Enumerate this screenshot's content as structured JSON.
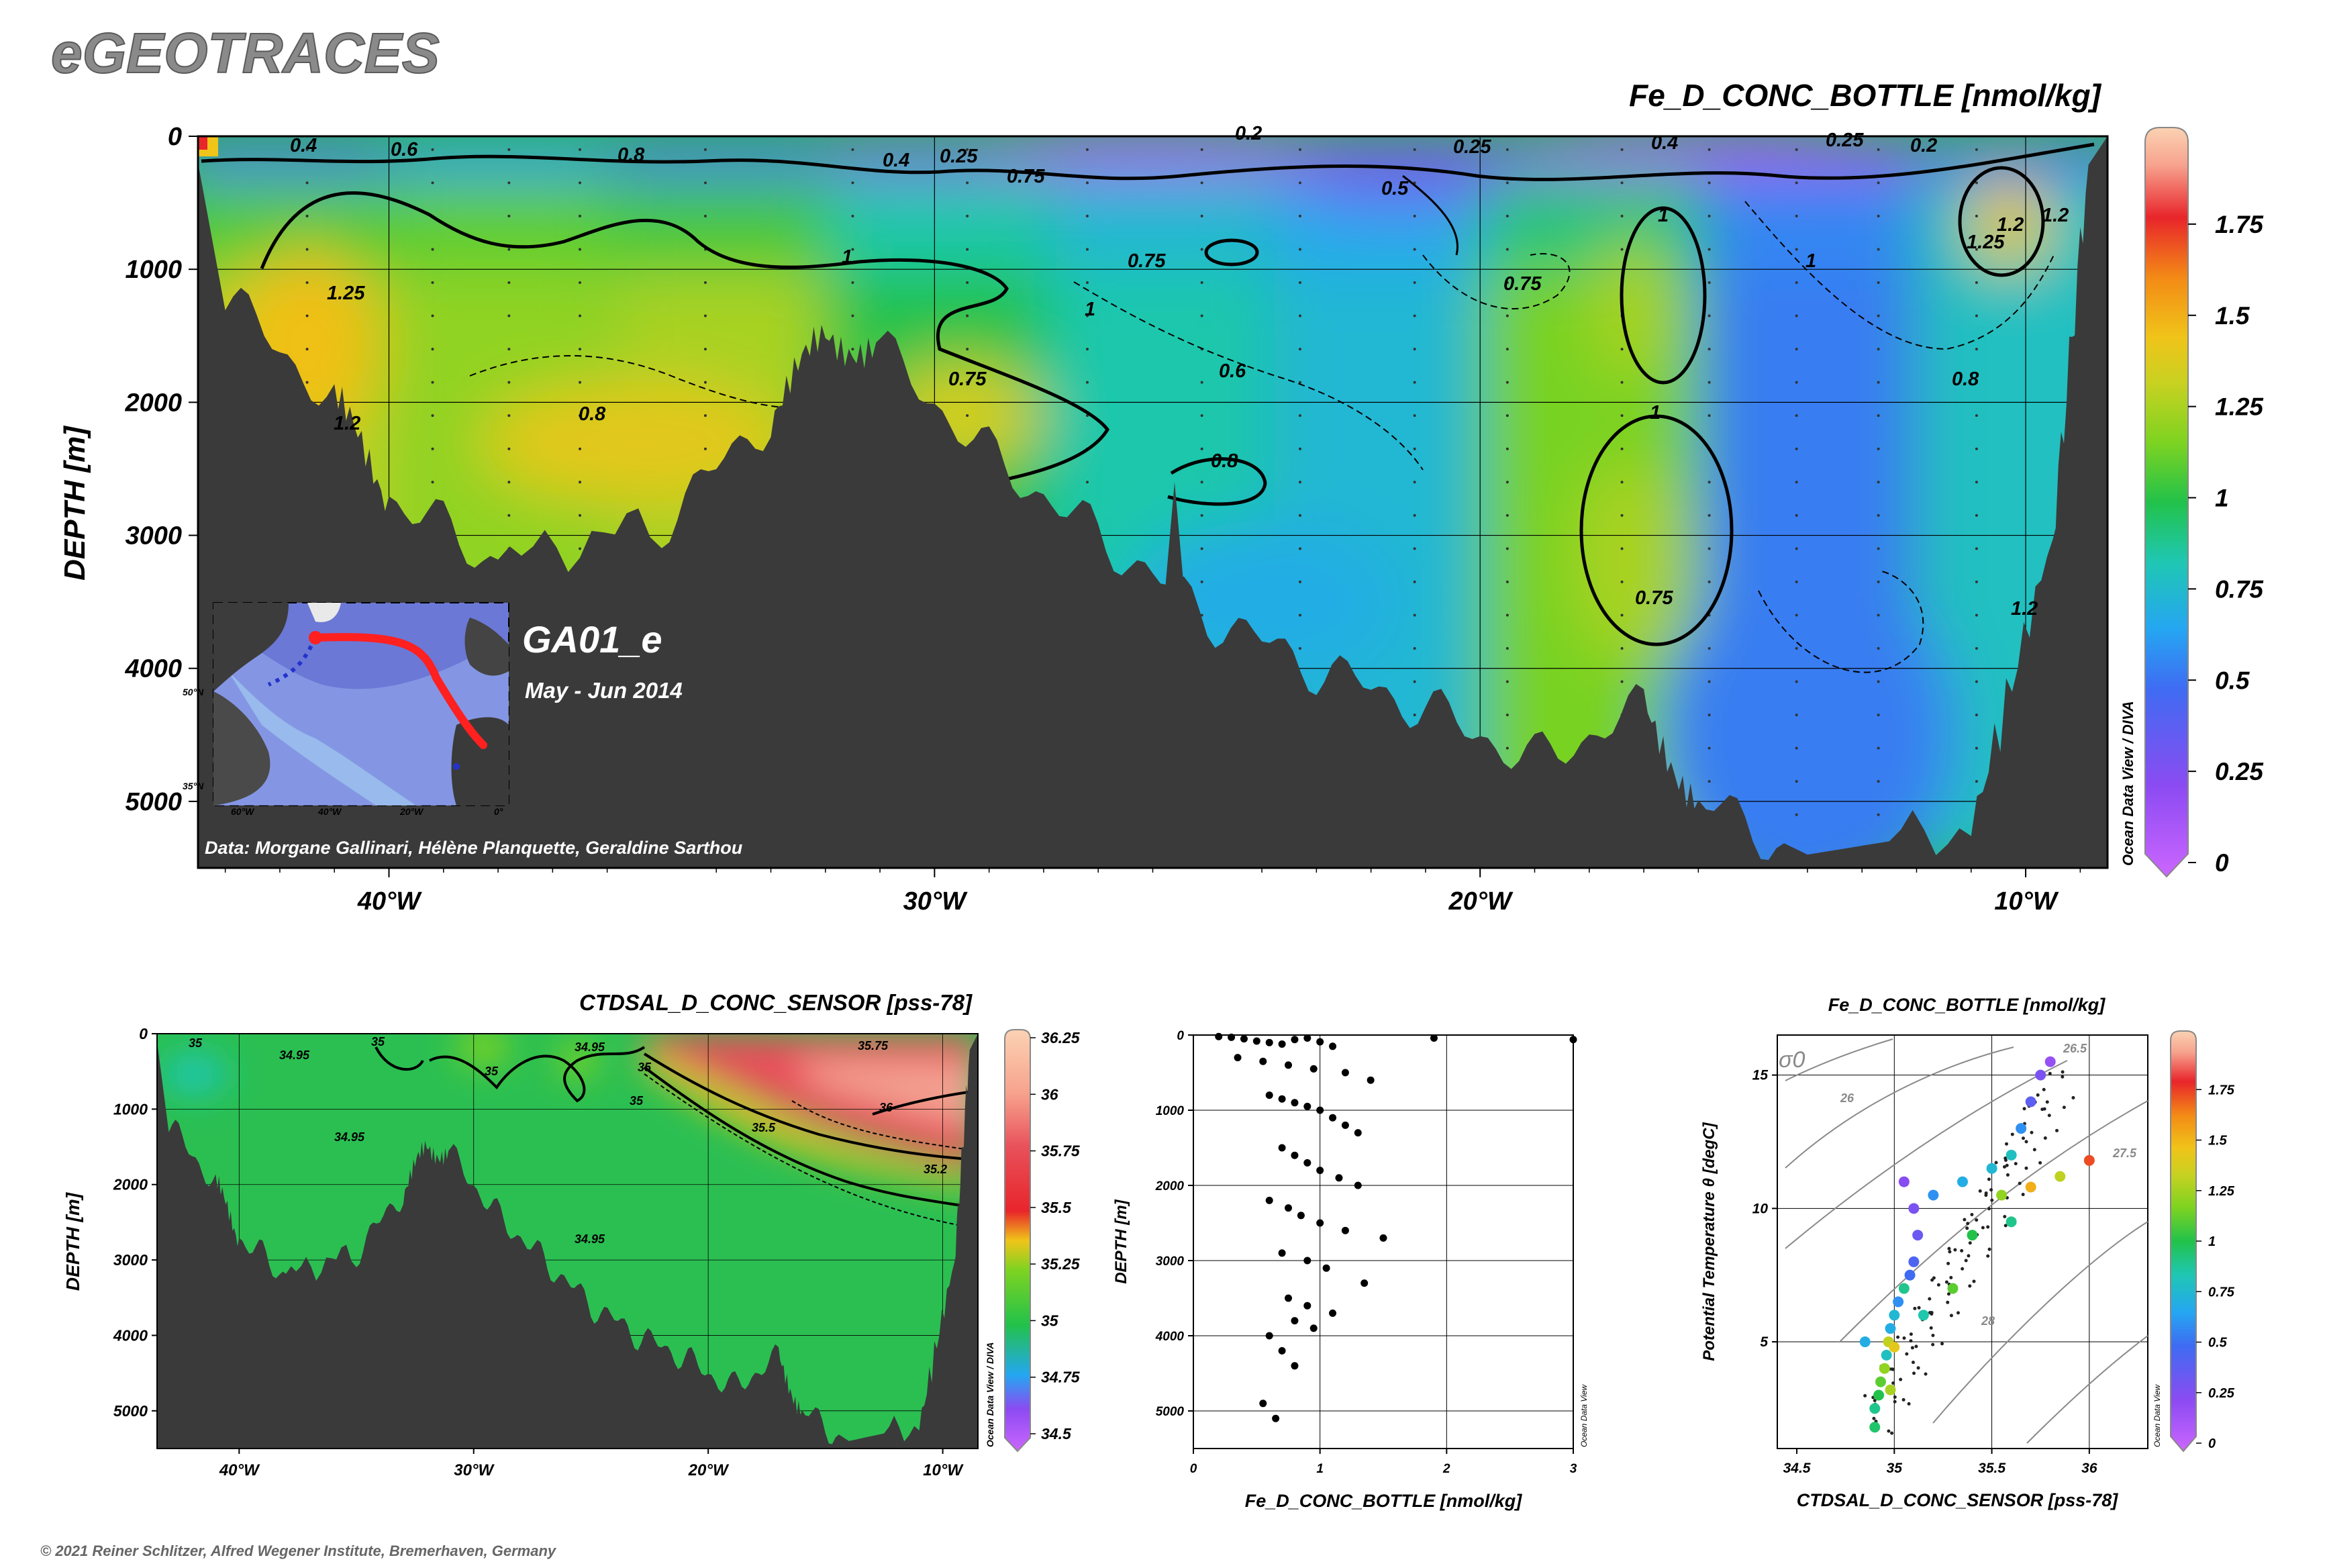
{
  "header": {
    "brand": "eGEOTRACES",
    "copyright": "© 2021 Reiner Schlitzer, Alfred Wegener Institute, Bremerhaven, Germany"
  },
  "main_section": {
    "title": "Fe_D_CONC_BOTTLE [nmol/kg]",
    "ylabel": "DEPTH [m]",
    "y_ticks": [
      "0",
      "1000",
      "2000",
      "3000",
      "4000",
      "5000"
    ],
    "x_ticks": [
      "40°W",
      "30°W",
      "20°W",
      "10°W"
    ],
    "colorbar_ticks": [
      "0",
      "0.25",
      "0.5",
      "0.75",
      "1",
      "1.25",
      "1.5",
      "1.75"
    ],
    "cruise": "GA01_e",
    "dates": "May - Jun 2014",
    "data_credit": "Data: Morgane Gallinari, Hélène Planquette, Geraldine Sarthou",
    "watermark": "Ocean Data View / DIVA",
    "contour_labels": [
      "0.4",
      "0.6",
      "0.8",
      "0.4",
      "0.25",
      "0.75",
      "0.2",
      "0.25",
      "0.4",
      "0.25",
      "0.2",
      "0.5",
      "1",
      "1.2",
      "1",
      "1.25",
      "1.2",
      "1.25",
      "1.2",
      "0.8",
      "0.75",
      "0.75",
      "1",
      "0.6",
      "0.75",
      "1",
      "1",
      "0.8",
      "0.8",
      "1.2",
      "0.75"
    ],
    "inset_map": {
      "lat_labels": [
        "50°N",
        "35°N"
      ],
      "lon_labels": [
        "60°W",
        "40°W",
        "20°W",
        "0°"
      ]
    }
  },
  "salinity_section": {
    "title": "CTDSAL_D_CONC_SENSOR [pss-78]",
    "ylabel": "DEPTH [m]",
    "y_ticks": [
      "0",
      "1000",
      "2000",
      "3000",
      "4000",
      "5000"
    ],
    "x_ticks": [
      "40°W",
      "30°W",
      "20°W",
      "10°W"
    ],
    "colorbar_ticks": [
      "34.5",
      "34.75",
      "35",
      "35.25",
      "35.5",
      "35.75",
      "36",
      "36.25"
    ],
    "watermark": "Ocean Data View / DIVA",
    "contour_labels": [
      "35",
      "34.95",
      "34.95",
      "35",
      "35",
      "34.95",
      "35",
      "35",
      "35.5",
      "36",
      "35.2",
      "34.95",
      "35.75"
    ]
  },
  "profile_plot": {
    "xlabel": "Fe_D_CONC_BOTTLE [nmol/kg]",
    "ylabel": "DEPTH [m]",
    "x_ticks": [
      "0",
      "1",
      "2",
      "3"
    ],
    "y_ticks": [
      "0",
      "1000",
      "2000",
      "3000",
      "4000",
      "5000"
    ],
    "watermark": "Ocean Data View"
  },
  "ts_plot": {
    "title": "Fe_D_CONC_BOTTLE [nmol/kg]",
    "xlabel": "CTDSAL_D_CONC_SENSOR [pss-78]",
    "ylabel": "Potential Temperature θ [degC]",
    "x_ticks": [
      "34.5",
      "35",
      "35.5",
      "36"
    ],
    "y_ticks": [
      "5",
      "10",
      "15"
    ],
    "isopycnal_symbol": "σ0",
    "isopycnal_labels": [
      "26",
      "26.5",
      "27.5",
      "28"
    ],
    "colorbar_ticks": [
      "0",
      "0.25",
      "0.5",
      "0.75",
      "1",
      "1.25",
      "1.5",
      "1.75"
    ],
    "watermark": "Ocean Data View"
  },
  "chart_data": [
    {
      "type": "heatmap",
      "title": "Fe_D_CONC_BOTTLE [nmol/kg]",
      "ylabel": "DEPTH [m]",
      "xlim": [
        -43.5,
        -8.5
      ],
      "ylim": [
        5500,
        0
      ],
      "clim": [
        0,
        2
      ],
      "colors": [
        "#cc66ff",
        "#8c4bf2",
        "#3f6bf2",
        "#25a6f2",
        "#1fc7b3",
        "#22c24a",
        "#7ed321",
        "#c9d121",
        "#f0c419",
        "#f38a16",
        "#e8252b",
        "#f7a38e",
        "#fbd2b3"
      ],
      "zones_x": [
        -42,
        -38,
        -34,
        -30,
        -26,
        -22,
        -18,
        -14,
        -10
      ],
      "zones_depth": [
        0,
        1000,
        2000,
        3000,
        4000,
        5000
      ],
      "surface_fe": [
        0.45,
        0.6,
        0.45,
        0.3,
        0.25,
        0.2,
        0.3,
        0.2,
        0.4
      ],
      "deep_fe": [
        1.3,
        1.2,
        1.25,
        1.0,
        0.85,
        0.75,
        1.15,
        0.55,
        0.8
      ],
      "bottom_depth": [
        {
          "x": -43,
          "d": 1200
        },
        {
          "x": -41,
          "d": 2000
        },
        {
          "x": -40,
          "d": 2700
        },
        {
          "x": -38,
          "d": 3200
        },
        {
          "x": -35,
          "d": 2900
        },
        {
          "x": -33,
          "d": 2100
        },
        {
          "x": -32,
          "d": 1500
        },
        {
          "x": -31,
          "d": 1600
        },
        {
          "x": -29,
          "d": 2400
        },
        {
          "x": -27,
          "d": 3000
        },
        {
          "x": -25,
          "d": 3600
        },
        {
          "x": -23,
          "d": 4000
        },
        {
          "x": -21,
          "d": 4300
        },
        {
          "x": -19,
          "d": 4700
        },
        {
          "x": -17,
          "d": 4300
        },
        {
          "x": -16,
          "d": 5000
        },
        {
          "x": -14,
          "d": 5400
        },
        {
          "x": -11,
          "d": 5200
        },
        {
          "x": -9.5,
          "d": 3000
        },
        {
          "x": -8.8,
          "d": 0
        }
      ]
    },
    {
      "type": "heatmap",
      "title": "CTDSAL_D_CONC_SENSOR [pss-78]",
      "ylabel": "DEPTH [m]",
      "xlim": [
        -43.5,
        -8.5
      ],
      "ylim": [
        5500,
        0
      ],
      "clim": [
        34.5,
        36.25
      ],
      "upper_warm_region_salinity": [
        35.5,
        36.1
      ],
      "background_salinity": 34.95
    },
    {
      "type": "scatter",
      "xlabel": "Fe_D_CONC_BOTTLE [nmol/kg]",
      "ylabel": "DEPTH [m]",
      "xlim": [
        0,
        3
      ],
      "ylim": [
        5500,
        0
      ],
      "x": [
        0.2,
        0.3,
        0.4,
        0.5,
        0.6,
        0.7,
        0.8,
        0.9,
        1.0,
        1.1,
        0.35,
        0.55,
        0.75,
        0.95,
        1.2,
        1.4,
        0.6,
        0.7,
        0.8,
        0.9,
        1.0,
        1.1,
        1.2,
        1.3,
        0.7,
        0.8,
        0.9,
        1.0,
        1.15,
        1.3,
        0.6,
        0.75,
        0.85,
        1.0,
        1.2,
        1.5,
        0.7,
        0.9,
        1.05,
        1.35,
        0.75,
        0.9,
        1.1,
        0.8,
        0.95,
        0.6,
        0.7,
        0.8,
        0.55,
        0.65,
        1.9,
        3.0
      ],
      "y": [
        20,
        30,
        50,
        80,
        100,
        120,
        60,
        40,
        90,
        150,
        300,
        350,
        400,
        450,
        500,
        600,
        800,
        850,
        900,
        950,
        1000,
        1100,
        1200,
        1300,
        1500,
        1600,
        1700,
        1800,
        1900,
        2000,
        2200,
        2300,
        2400,
        2500,
        2600,
        2700,
        2900,
        3000,
        3100,
        3300,
        3500,
        3600,
        3700,
        3800,
        3900,
        4000,
        4200,
        4400,
        4900,
        5100,
        40,
        60
      ]
    },
    {
      "type": "scatter",
      "xlabel": "CTDSAL_D_CONC_SENSOR [pss-78]",
      "ylabel": "Potential Temperature θ [degC]",
      "xlim": [
        34.4,
        36.3
      ],
      "ylim": [
        1,
        16.5
      ],
      "points": [
        {
          "s": 34.9,
          "t": 2.5,
          "fe": 0.9
        },
        {
          "s": 34.92,
          "t": 3.0,
          "fe": 1.0
        },
        {
          "s": 34.93,
          "t": 3.5,
          "fe": 1.1
        },
        {
          "s": 34.95,
          "t": 4.0,
          "fe": 1.2
        },
        {
          "s": 34.96,
          "t": 4.5,
          "fe": 0.8
        },
        {
          "s": 34.97,
          "t": 5.0,
          "fe": 1.3
        },
        {
          "s": 34.98,
          "t": 5.5,
          "fe": 0.7
        },
        {
          "s": 35.0,
          "t": 6.0,
          "fe": 0.75
        },
        {
          "s": 35.02,
          "t": 6.5,
          "fe": 0.6
        },
        {
          "s": 35.05,
          "t": 7.0,
          "fe": 0.9
        },
        {
          "s": 35.08,
          "t": 7.5,
          "fe": 0.5
        },
        {
          "s": 35.1,
          "t": 8.0,
          "fe": 0.45
        },
        {
          "s": 35.12,
          "t": 9.0,
          "fe": 0.35
        },
        {
          "s": 35.1,
          "t": 10.0,
          "fe": 0.3
        },
        {
          "s": 35.05,
          "t": 11.0,
          "fe": 0.25
        },
        {
          "s": 35.2,
          "t": 10.5,
          "fe": 0.6
        },
        {
          "s": 35.35,
          "t": 11.0,
          "fe": 0.7
        },
        {
          "s": 35.5,
          "t": 11.5,
          "fe": 0.75
        },
        {
          "s": 35.6,
          "t": 12.0,
          "fe": 0.8
        },
        {
          "s": 35.65,
          "t": 13.0,
          "fe": 0.6
        },
        {
          "s": 35.7,
          "t": 14.0,
          "fe": 0.4
        },
        {
          "s": 35.75,
          "t": 15.0,
          "fe": 0.3
        },
        {
          "s": 35.8,
          "t": 15.5,
          "fe": 0.2
        },
        {
          "s": 35.55,
          "t": 10.5,
          "fe": 1.2
        },
        {
          "s": 35.7,
          "t": 10.8,
          "fe": 1.5
        },
        {
          "s": 35.85,
          "t": 11.2,
          "fe": 1.3
        },
        {
          "s": 36.0,
          "t": 11.8,
          "fe": 1.7
        },
        {
          "s": 35.4,
          "t": 9.0,
          "fe": 1.0
        },
        {
          "s": 35.6,
          "t": 9.5,
          "fe": 0.9
        },
        {
          "s": 35.3,
          "t": 7.0,
          "fe": 1.1
        },
        {
          "s": 35.0,
          "t": 4.8,
          "fe": 1.4
        },
        {
          "s": 34.98,
          "t": 3.2,
          "fe": 1.25
        },
        {
          "s": 35.15,
          "t": 6.0,
          "fe": 0.85
        },
        {
          "s": 34.85,
          "t": 5.0,
          "fe": 0.7
        },
        {
          "s": 34.9,
          "t": 1.8,
          "fe": 0.95
        }
      ]
    }
  ]
}
